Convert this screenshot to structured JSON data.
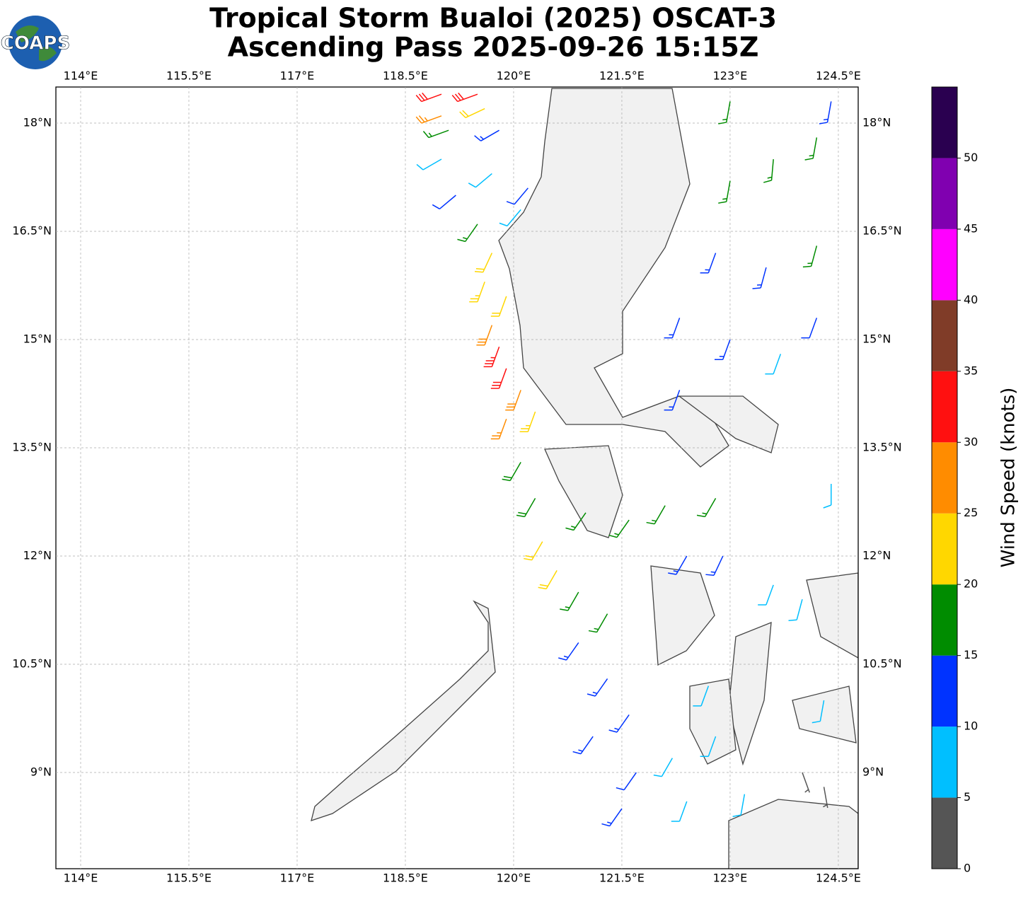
{
  "header": {
    "title": [
      "Tropical Storm Bualoi (2025) OSCAT-3",
      "Ascending Pass 2025-09-26 15:15Z"
    ],
    "logo": "COAPS"
  },
  "map": {
    "xlim": [
      113.657,
      124.775
    ],
    "ylim": [
      7.667,
      18.5
    ],
    "grid": true,
    "xticks": [
      {
        "value": 114,
        "label": "114°E"
      },
      {
        "value": 115.5,
        "label": "115.5°E"
      },
      {
        "value": 117,
        "label": "117°E"
      },
      {
        "value": 118.5,
        "label": "118.5°E"
      },
      {
        "value": 120,
        "label": "120°E"
      },
      {
        "value": 121.5,
        "label": "121.5°E"
      },
      {
        "value": 123,
        "label": "123°E"
      },
      {
        "value": 124.5,
        "label": "124.5°E"
      }
    ],
    "yticks": [
      {
        "value": 9,
        "label": "9°N"
      },
      {
        "value": 10.5,
        "label": "10.5°N"
      },
      {
        "value": 12,
        "label": "12°N"
      },
      {
        "value": 13.5,
        "label": "13.5°N"
      },
      {
        "value": 15,
        "label": "15°N"
      },
      {
        "value": 16.5,
        "label": "16.5°N"
      },
      {
        "value": 18,
        "label": "18°N"
      }
    ],
    "barbs": {
      "lon": [
        119.0,
        119.5,
        119.0,
        119.6,
        119.1,
        119.8,
        119.0,
        119.7,
        119.2,
        120.2,
        119.5,
        120.1,
        119.7,
        119.6,
        119.9,
        119.7,
        119.8,
        119.9,
        120.1,
        120.3,
        119.9,
        120.1,
        120.3,
        120.4,
        120.6,
        120.9,
        121.3,
        121.6,
        121.0,
        120.9,
        121.3,
        121.6,
        121.1,
        121.7,
        121.5,
        122.2,
        122.4,
        122.8,
        123.2,
        122.7,
        122.4,
        122.9,
        122.8,
        122.1,
        123.6,
        124.0,
        124.3,
        124.4,
        124.0,
        124.3,
        122.3,
        122.3,
        123.0,
        123.7,
        124.2,
        122.8,
        123.5,
        124.2,
        123.0,
        123.6,
        124.2,
        123.0,
        124.4
      ],
      "lat": [
        18.4,
        18.4,
        18.1,
        18.2,
        17.9,
        17.9,
        17.5,
        17.3,
        17.0,
        17.1,
        16.6,
        16.8,
        16.2,
        15.8,
        15.6,
        15.2,
        14.9,
        14.6,
        14.3,
        14.0,
        13.9,
        13.3,
        12.8,
        12.2,
        11.8,
        11.5,
        11.2,
        12.5,
        12.6,
        10.8,
        10.3,
        9.8,
        9.5,
        9.0,
        8.5,
        9.2,
        8.6,
        9.5,
        8.7,
        10.2,
        12.0,
        12.0,
        12.8,
        12.7,
        11.6,
        11.4,
        10.0,
        13.0,
        9.0,
        8.8,
        14.3,
        15.3,
        15.0,
        14.8,
        15.3,
        16.2,
        16.0,
        16.3,
        17.2,
        17.5,
        17.8,
        18.3,
        18.3
      ],
      "speed": [
        32,
        30,
        27,
        22,
        17,
        13,
        8,
        8,
        12,
        12,
        17,
        8,
        22,
        24,
        22,
        28,
        33,
        32,
        28,
        23,
        27,
        18,
        18,
        22,
        22,
        17,
        17,
        17,
        17,
        13,
        13,
        13,
        13,
        12,
        13,
        8,
        8,
        8,
        8,
        8,
        13,
        13,
        17,
        17,
        8,
        8,
        8,
        8,
        3,
        4,
        13,
        13,
        13,
        8,
        10,
        13,
        13,
        17,
        17,
        17,
        17,
        17,
        13
      ],
      "direction": [
        250,
        250,
        250,
        245,
        250,
        240,
        240,
        230,
        230,
        220,
        215,
        220,
        205,
        200,
        200,
        200,
        200,
        200,
        200,
        200,
        200,
        210,
        210,
        210,
        210,
        210,
        210,
        215,
        215,
        215,
        215,
        215,
        215,
        215,
        215,
        210,
        200,
        200,
        190,
        200,
        210,
        205,
        210,
        210,
        200,
        195,
        190,
        180,
        160,
        170,
        200,
        200,
        200,
        200,
        200,
        200,
        195,
        195,
        190,
        185,
        190,
        190,
        190
      ]
    }
  },
  "colorbar": {
    "label": "Wind Speed (knots)",
    "lim": [
      0,
      55
    ],
    "ticks": [
      0,
      5,
      10,
      15,
      20,
      25,
      30,
      35,
      40,
      45,
      50
    ],
    "bounds": [
      0,
      5,
      10,
      15,
      20,
      25,
      30,
      35,
      40,
      45,
      50,
      55
    ],
    "colors": [
      "#555555",
      "#00bfff",
      "#0033ff",
      "#008c00",
      "#ffd700",
      "#ff8c00",
      "#ff1010",
      "#803c28",
      "#ff00ff",
      "#8000b0",
      "#2a0050"
    ]
  }
}
